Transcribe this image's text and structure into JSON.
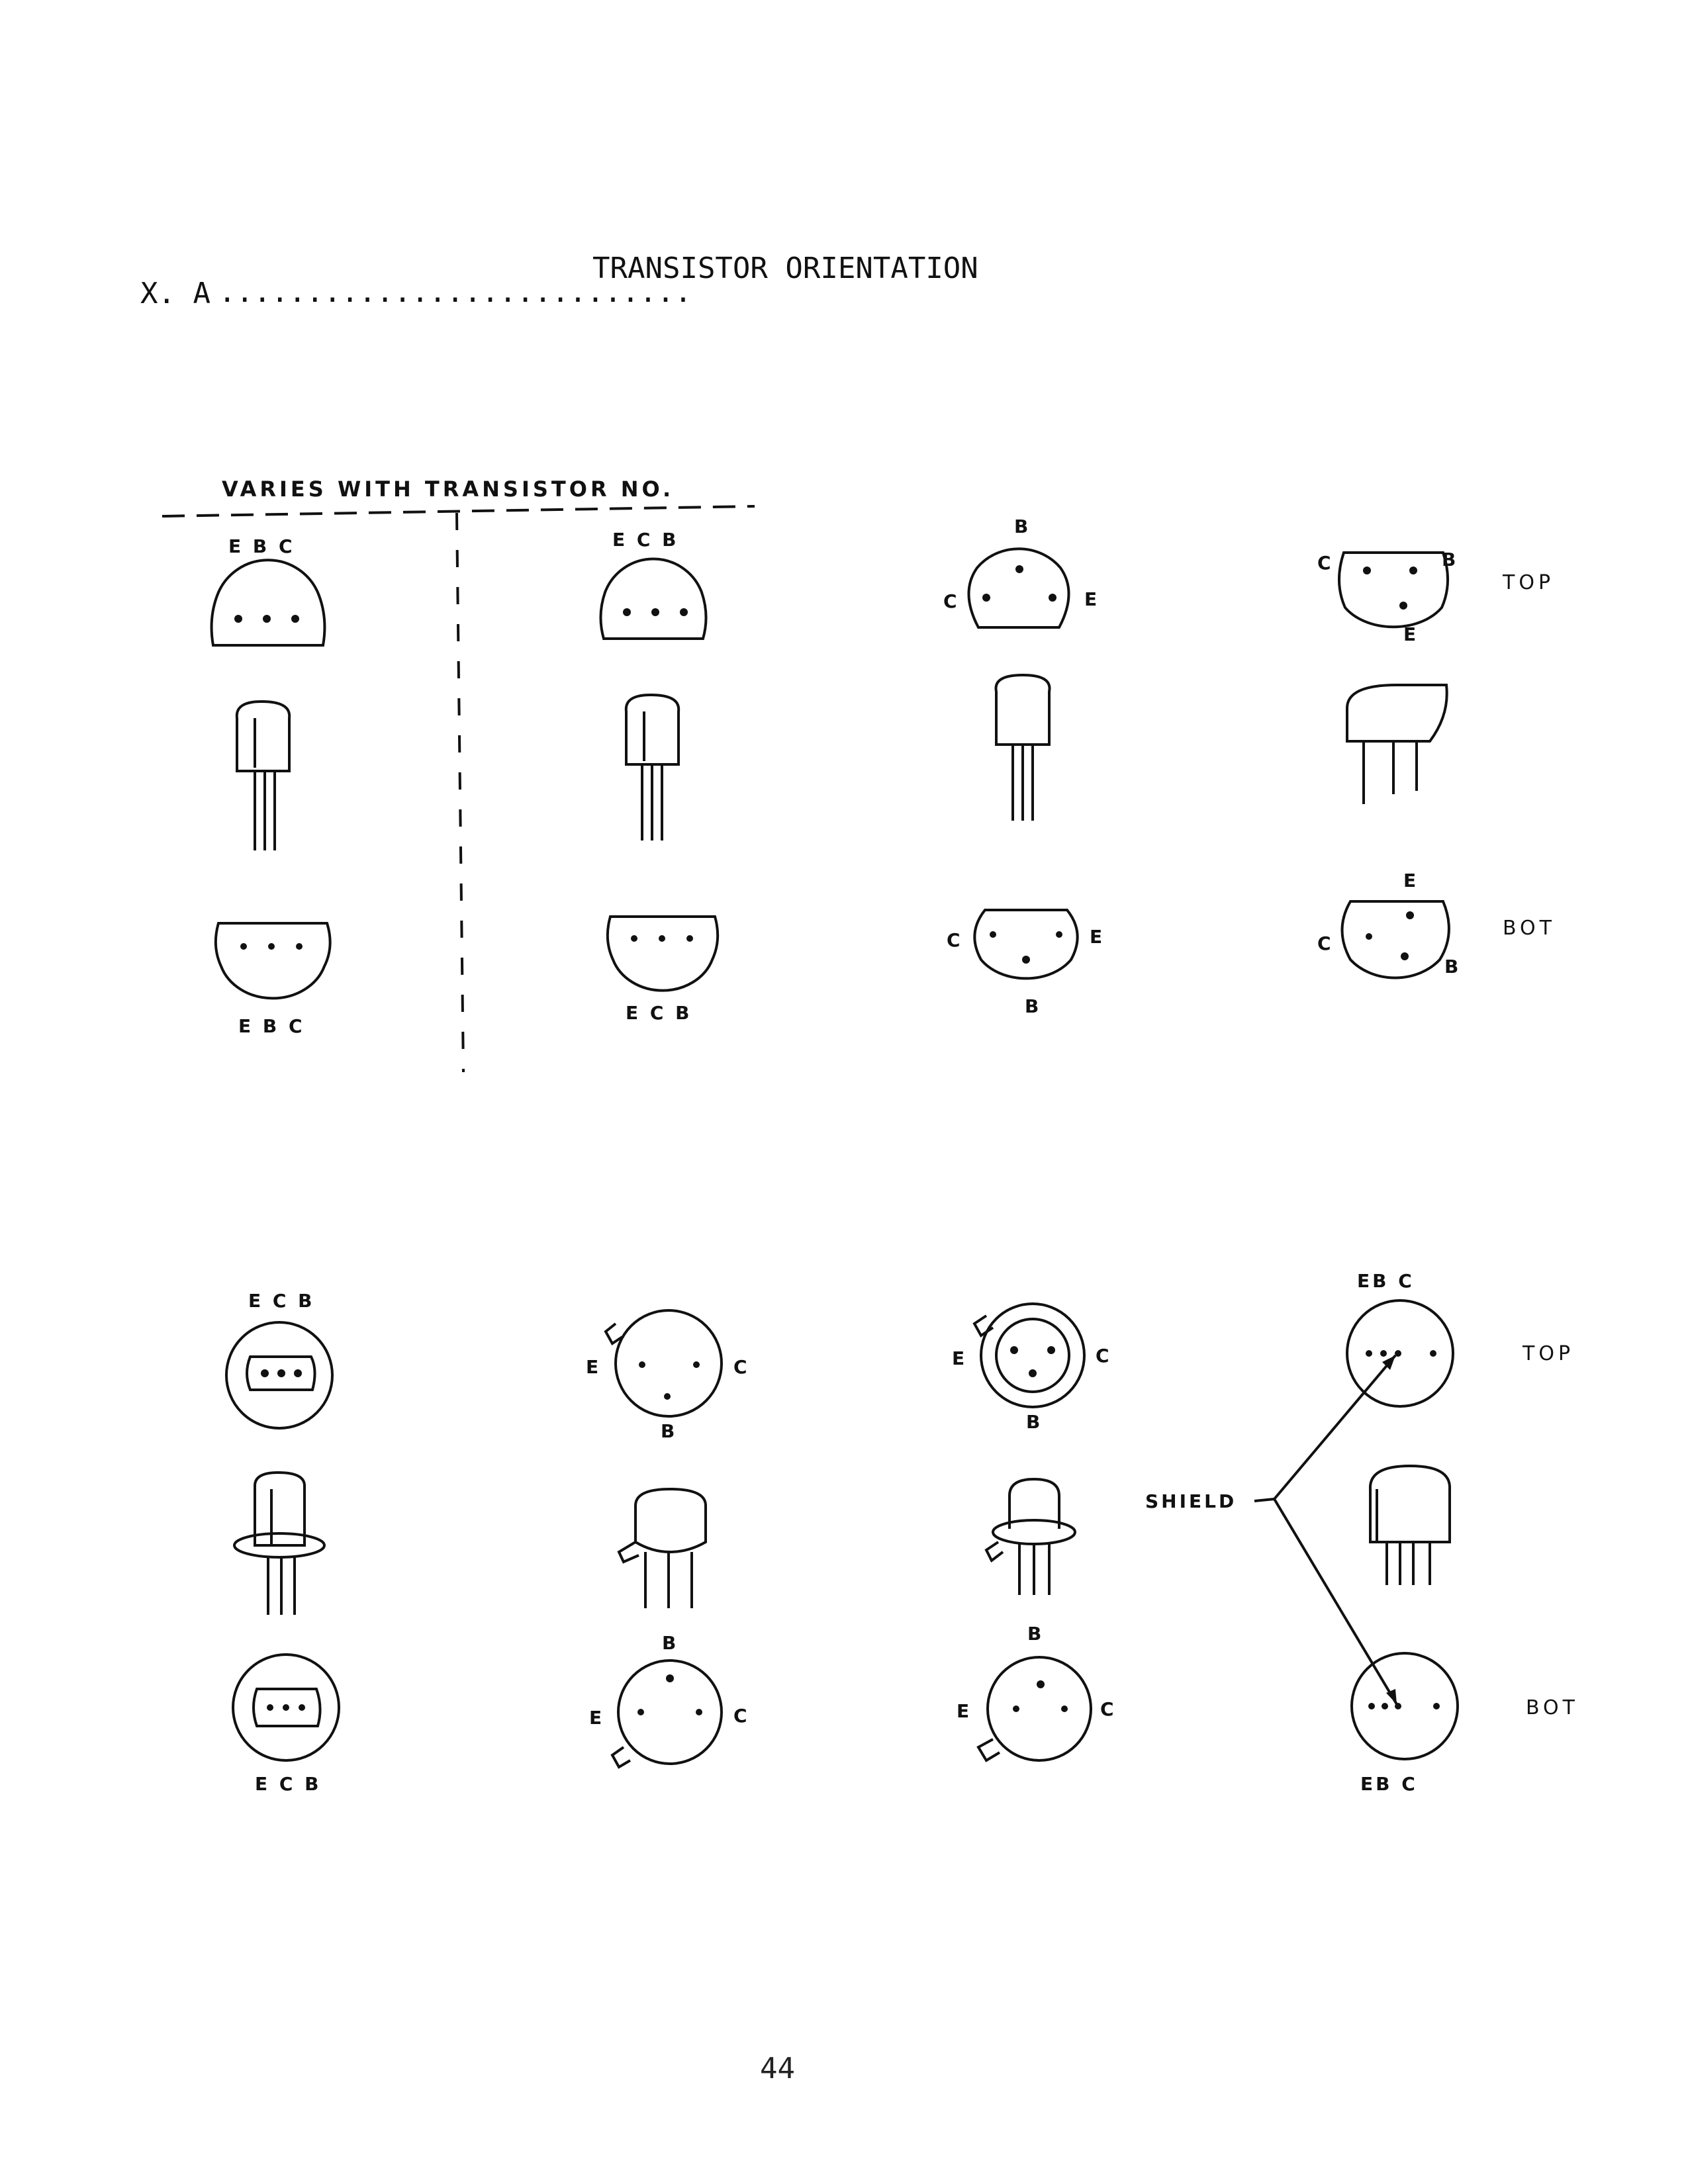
{
  "heading": {
    "prefix": "X. A",
    "leader": "...........................",
    "title": "TRANSISTOR ORIENTATION"
  },
  "varies_note": "VARIES WITH TRANSISTOR NO.",
  "view_labels": {
    "top": "TOP",
    "bottom": "BOT"
  },
  "shield_label": "SHIELD",
  "page_number": "44",
  "row1": {
    "t1": {
      "top": "E B C",
      "bottom": "E B C"
    },
    "t2": {
      "top": "E C B",
      "bottom": "E C B"
    },
    "t3": {
      "top_b": "B",
      "top_c": "C",
      "top_e": "E",
      "bot_c": "C",
      "bot_e": "E",
      "bot_b": "B"
    },
    "t4": {
      "top_c": "C",
      "top_b": "B",
      "top_e": "E",
      "bot_e": "E",
      "bot_c": "C",
      "bot_b": "B"
    }
  },
  "row2": {
    "t5": {
      "top": "E C B",
      "bottom": "E C B"
    },
    "t6": {
      "top_e": "E",
      "top_c": "C",
      "top_b": "B",
      "bot_b": "B",
      "bot_e": "E",
      "bot_c": "C"
    },
    "t7": {
      "top_e": "E",
      "top_c": "C",
      "top_b": "B",
      "bot_b": "B",
      "bot_e": "E",
      "bot_c": "C"
    },
    "t8": {
      "top": "EB  C",
      "bottom": "EB  C"
    }
  }
}
